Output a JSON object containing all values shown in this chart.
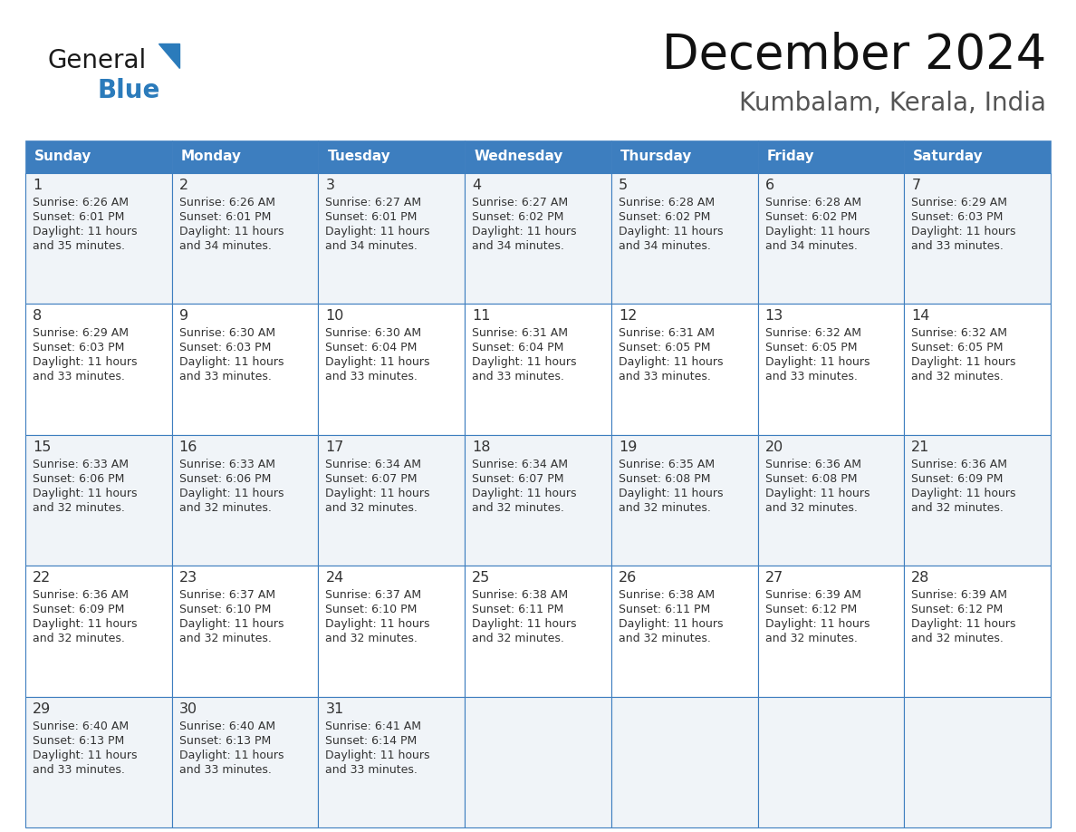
{
  "title": "December 2024",
  "subtitle": "Kumbalam, Kerala, India",
  "days_of_week": [
    "Sunday",
    "Monday",
    "Tuesday",
    "Wednesday",
    "Thursday",
    "Friday",
    "Saturday"
  ],
  "header_bg": "#3d7ebf",
  "header_text_color": "#FFFFFF",
  "cell_border_color": "#3d7ebf",
  "day_number_color": "#333333",
  "cell_text_color": "#333333",
  "bg_color": "#FFFFFF",
  "odd_row_bg": "#f0f4f8",
  "even_row_bg": "#FFFFFF",
  "logo_general_color": "#1a1a1a",
  "logo_blue_color": "#2B7BBB",
  "logo_triangle_color": "#2B7BBB",
  "calendar_data": [
    [
      {
        "day": 1,
        "sunrise": "6:26 AM",
        "sunset": "6:01 PM",
        "daylight": "11 hours and 35 minutes."
      },
      {
        "day": 2,
        "sunrise": "6:26 AM",
        "sunset": "6:01 PM",
        "daylight": "11 hours and 34 minutes."
      },
      {
        "day": 3,
        "sunrise": "6:27 AM",
        "sunset": "6:01 PM",
        "daylight": "11 hours and 34 minutes."
      },
      {
        "day": 4,
        "sunrise": "6:27 AM",
        "sunset": "6:02 PM",
        "daylight": "11 hours and 34 minutes."
      },
      {
        "day": 5,
        "sunrise": "6:28 AM",
        "sunset": "6:02 PM",
        "daylight": "11 hours and 34 minutes."
      },
      {
        "day": 6,
        "sunrise": "6:28 AM",
        "sunset": "6:02 PM",
        "daylight": "11 hours and 34 minutes."
      },
      {
        "day": 7,
        "sunrise": "6:29 AM",
        "sunset": "6:03 PM",
        "daylight": "11 hours and 33 minutes."
      }
    ],
    [
      {
        "day": 8,
        "sunrise": "6:29 AM",
        "sunset": "6:03 PM",
        "daylight": "11 hours and 33 minutes."
      },
      {
        "day": 9,
        "sunrise": "6:30 AM",
        "sunset": "6:03 PM",
        "daylight": "11 hours and 33 minutes."
      },
      {
        "day": 10,
        "sunrise": "6:30 AM",
        "sunset": "6:04 PM",
        "daylight": "11 hours and 33 minutes."
      },
      {
        "day": 11,
        "sunrise": "6:31 AM",
        "sunset": "6:04 PM",
        "daylight": "11 hours and 33 minutes."
      },
      {
        "day": 12,
        "sunrise": "6:31 AM",
        "sunset": "6:05 PM",
        "daylight": "11 hours and 33 minutes."
      },
      {
        "day": 13,
        "sunrise": "6:32 AM",
        "sunset": "6:05 PM",
        "daylight": "11 hours and 33 minutes."
      },
      {
        "day": 14,
        "sunrise": "6:32 AM",
        "sunset": "6:05 PM",
        "daylight": "11 hours and 32 minutes."
      }
    ],
    [
      {
        "day": 15,
        "sunrise": "6:33 AM",
        "sunset": "6:06 PM",
        "daylight": "11 hours and 32 minutes."
      },
      {
        "day": 16,
        "sunrise": "6:33 AM",
        "sunset": "6:06 PM",
        "daylight": "11 hours and 32 minutes."
      },
      {
        "day": 17,
        "sunrise": "6:34 AM",
        "sunset": "6:07 PM",
        "daylight": "11 hours and 32 minutes."
      },
      {
        "day": 18,
        "sunrise": "6:34 AM",
        "sunset": "6:07 PM",
        "daylight": "11 hours and 32 minutes."
      },
      {
        "day": 19,
        "sunrise": "6:35 AM",
        "sunset": "6:08 PM",
        "daylight": "11 hours and 32 minutes."
      },
      {
        "day": 20,
        "sunrise": "6:36 AM",
        "sunset": "6:08 PM",
        "daylight": "11 hours and 32 minutes."
      },
      {
        "day": 21,
        "sunrise": "6:36 AM",
        "sunset": "6:09 PM",
        "daylight": "11 hours and 32 minutes."
      }
    ],
    [
      {
        "day": 22,
        "sunrise": "6:36 AM",
        "sunset": "6:09 PM",
        "daylight": "11 hours and 32 minutes."
      },
      {
        "day": 23,
        "sunrise": "6:37 AM",
        "sunset": "6:10 PM",
        "daylight": "11 hours and 32 minutes."
      },
      {
        "day": 24,
        "sunrise": "6:37 AM",
        "sunset": "6:10 PM",
        "daylight": "11 hours and 32 minutes."
      },
      {
        "day": 25,
        "sunrise": "6:38 AM",
        "sunset": "6:11 PM",
        "daylight": "11 hours and 32 minutes."
      },
      {
        "day": 26,
        "sunrise": "6:38 AM",
        "sunset": "6:11 PM",
        "daylight": "11 hours and 32 minutes."
      },
      {
        "day": 27,
        "sunrise": "6:39 AM",
        "sunset": "6:12 PM",
        "daylight": "11 hours and 32 minutes."
      },
      {
        "day": 28,
        "sunrise": "6:39 AM",
        "sunset": "6:12 PM",
        "daylight": "11 hours and 32 minutes."
      }
    ],
    [
      {
        "day": 29,
        "sunrise": "6:40 AM",
        "sunset": "6:13 PM",
        "daylight": "11 hours and 33 minutes."
      },
      {
        "day": 30,
        "sunrise": "6:40 AM",
        "sunset": "6:13 PM",
        "daylight": "11 hours and 33 minutes."
      },
      {
        "day": 31,
        "sunrise": "6:41 AM",
        "sunset": "6:14 PM",
        "daylight": "11 hours and 33 minutes."
      },
      null,
      null,
      null,
      null
    ]
  ],
  "figsize": [
    11.88,
    9.18
  ],
  "dpi": 100
}
